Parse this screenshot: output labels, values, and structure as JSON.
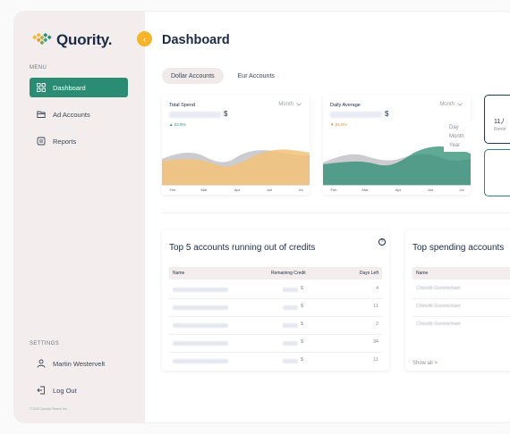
{
  "app": {
    "name": "Quority."
  },
  "sidebar": {
    "menu_label": "MENU",
    "items": [
      {
        "label": "Dashboard",
        "icon": "grid-icon",
        "active": true
      },
      {
        "label": "Ad Accounts",
        "icon": "folder-icon",
        "active": false
      },
      {
        "label": "Reports",
        "icon": "document-icon",
        "active": false
      }
    ],
    "settings_label": "SETTINGS",
    "user_name": "Martin Westervelt",
    "logout_label": "Log Out",
    "copyright": "© 2022 Quority Fintech Inc."
  },
  "header": {
    "title": "Dashboard"
  },
  "tabs": [
    {
      "label": "Dollar Accounts",
      "active": true
    },
    {
      "label": "Eur Accounts",
      "active": false
    }
  ],
  "total_spend": {
    "title": "Total Spend",
    "currency": "$",
    "delta": "▲ 22.0%",
    "delta_color": "#2a8c72",
    "period": "Month",
    "months": [
      "Feb",
      "Mar",
      "Apr",
      "Jun",
      "Jul"
    ],
    "accent": "#f2c279"
  },
  "daily_average": {
    "title": "Daily Average",
    "currency": "$",
    "delta": "▼ 22.0%",
    "delta_color": "#e08a2c",
    "period": "Month",
    "months": [
      "Feb",
      "Mar",
      "Apr",
      "Jun",
      "Jul"
    ],
    "accent": "#2a8c72",
    "dropdown_options": [
      "Day",
      "Month",
      "Year"
    ]
  },
  "stat_card": {
    "value": "11,/",
    "label": "Remo"
  },
  "top_accounts": {
    "title": "Top 5 accounts running out of credits",
    "headers": {
      "name": "Name",
      "credit": "Remaining Credit",
      "days": "Days Left"
    },
    "rows": [
      {
        "currency": "$",
        "days": "4"
      },
      {
        "currency": "$",
        "days": "11"
      },
      {
        "currency": "$",
        "days": "2"
      },
      {
        "currency": "$",
        "days": "34"
      },
      {
        "currency": "$",
        "days": "11"
      }
    ]
  },
  "top_spending": {
    "title": "Top spending accounts",
    "headers": {
      "name": "Name"
    },
    "rows": [
      {
        "name": "Chinotti Goomichael"
      },
      {
        "name": "Chinotti Goomichael"
      },
      {
        "name": "Chinotti Goomichael"
      }
    ],
    "show_all": "Show all  >"
  }
}
